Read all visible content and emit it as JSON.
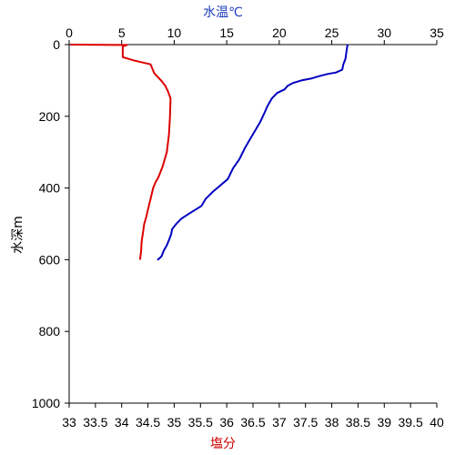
{
  "chart_data": {
    "type": "line",
    "temp_axis_label": "水温℃",
    "salinity_axis_label": "塩分",
    "depth_axis_label": "水深m",
    "temp_range": [
      0,
      35
    ],
    "temp_ticks": [
      "0",
      "5",
      "10",
      "15",
      "20",
      "25",
      "30",
      "35"
    ],
    "salinity_range": [
      33,
      40
    ],
    "salinity_ticks": [
      "33",
      "33.5",
      "34",
      "34.5",
      "35",
      "35.5",
      "36",
      "36.5",
      "37",
      "37.5",
      "38",
      "38.5",
      "39",
      "39.5",
      "40"
    ],
    "depth_range": [
      0,
      1000
    ],
    "depth_ticks": [
      "0",
      "200",
      "400",
      "600",
      "800",
      "1000"
    ],
    "colors": {
      "temperature": "#0000c0",
      "salinity": "#dd0000",
      "axis": "#000000",
      "temp_label": "#1f3fbf",
      "salinity_label": "#cc0000"
    },
    "series": [
      {
        "axis": "temperature",
        "points": [
          [
            26.5,
            0
          ],
          [
            26.4,
            20
          ],
          [
            26.3,
            40
          ],
          [
            26.1,
            55
          ],
          [
            26.0,
            70
          ],
          [
            25.4,
            78
          ],
          [
            24.6,
            82
          ],
          [
            23.8,
            88
          ],
          [
            23.0,
            95
          ],
          [
            22.1,
            100
          ],
          [
            21.3,
            107
          ],
          [
            20.8,
            115
          ],
          [
            20.5,
            125
          ],
          [
            19.8,
            135
          ],
          [
            19.3,
            150
          ],
          [
            18.9,
            170
          ],
          [
            18.6,
            190
          ],
          [
            18.2,
            215
          ],
          [
            17.7,
            240
          ],
          [
            17.2,
            265
          ],
          [
            16.7,
            290
          ],
          [
            16.2,
            320
          ],
          [
            15.6,
            345
          ],
          [
            15.1,
            375
          ],
          [
            14.3,
            395
          ],
          [
            13.7,
            410
          ],
          [
            13.0,
            430
          ],
          [
            12.6,
            450
          ],
          [
            11.5,
            470
          ],
          [
            10.7,
            485
          ],
          [
            10.2,
            500
          ],
          [
            9.8,
            515
          ],
          [
            9.7,
            530
          ],
          [
            9.5,
            545
          ],
          [
            9.3,
            560
          ],
          [
            9.0,
            575
          ],
          [
            8.8,
            590
          ],
          [
            8.6,
            596
          ],
          [
            8.4,
            601
          ]
        ]
      },
      {
        "axis": "salinity",
        "points": [
          [
            33.02,
            0
          ],
          [
            34.1,
            1
          ],
          [
            34.02,
            5
          ],
          [
            34.02,
            35
          ],
          [
            34.25,
            45
          ],
          [
            34.55,
            55
          ],
          [
            34.62,
            80
          ],
          [
            34.75,
            100
          ],
          [
            34.83,
            115
          ],
          [
            34.88,
            130
          ],
          [
            34.93,
            150
          ],
          [
            34.92,
            200
          ],
          [
            34.9,
            250
          ],
          [
            34.86,
            300
          ],
          [
            34.78,
            340
          ],
          [
            34.7,
            370
          ],
          [
            34.64,
            385
          ],
          [
            34.6,
            400
          ],
          [
            34.55,
            430
          ],
          [
            34.5,
            460
          ],
          [
            34.47,
            480
          ],
          [
            34.43,
            500
          ],
          [
            34.4,
            530
          ],
          [
            34.38,
            550
          ],
          [
            34.37,
            575
          ],
          [
            34.35,
            600
          ]
        ]
      }
    ]
  }
}
